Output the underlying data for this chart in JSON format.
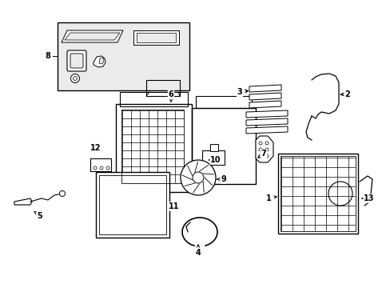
{
  "fig_bg": "#ffffff",
  "line_color": "#000000",
  "panel_bg": "#ebebeb",
  "figsize": [
    4.89,
    3.6
  ],
  "dpi": 100,
  "xlim": [
    0,
    489
  ],
  "ylim": [
    360,
    0
  ]
}
